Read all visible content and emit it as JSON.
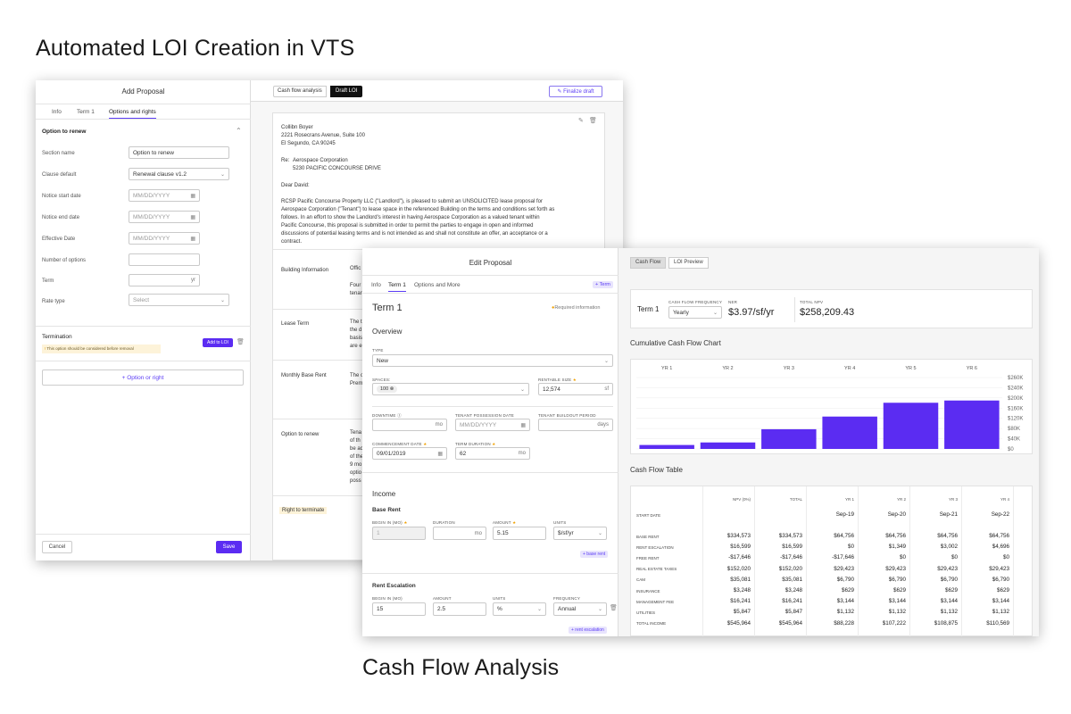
{
  "captions": {
    "top": "Automated LOI Creation in VTS",
    "bottom": "Cash Flow Analysis"
  },
  "colors": {
    "accent": "#5b2cf2",
    "bar": "#5b2cf2"
  },
  "add_proposal": {
    "title": "Add Proposal",
    "tabs": [
      "Info",
      "Term 1",
      "Options and rights"
    ],
    "section_title": "Option to renew",
    "fields": [
      {
        "label": "Section name",
        "value": "Option to renew"
      },
      {
        "label": "Clause default",
        "value": "Renewal clause v1.2"
      },
      {
        "label": "Notice start date",
        "placeholder": "MM/DD/YYYY"
      },
      {
        "label": "Notice end date",
        "placeholder": "MM/DD/YYYY"
      },
      {
        "label": "Effective Date",
        "placeholder": "MM/DD/YYYY"
      },
      {
        "label": "Number of options",
        "value": ""
      },
      {
        "label": "Term",
        "suffix": "yr"
      },
      {
        "label": "Rate type",
        "placeholder": "Select"
      }
    ],
    "termination_title": "Termination",
    "add_to_loi": "Add to LOI",
    "warning": "This option should be considered before removal",
    "option_button": "Option or right",
    "cancel": "Cancel",
    "save": "Save"
  },
  "loi": {
    "tab_cash": "Cash flow analysis",
    "tab_draft": "Draft LOI",
    "finalize": "Finalize draft",
    "address": [
      "Collibn Boyer",
      "2221 Rosecrans Avenue, Suite 100",
      "El Segundo, CA 90245"
    ],
    "re_label": "Re:",
    "re_lines": [
      "Aerospace Corporation",
      "5230 PACIFIC CONCOURSE DRIVE"
    ],
    "salutation": "Dear David:",
    "body": [
      "RCSP Pacific Concourse Property LLC (\"Landlord\"), is pleased to submit an UNSOLICITED lease proposal for",
      "Aerospace Corporation (\"Tenant\") to lease space in the referenced Building on the terms and conditions set forth as",
      "follows.  In an effort to show the Landlord's interest in having Aerospace Corporation as a valued tenant within",
      "Pacific Concourse, this proposal is submitted in order to permit the parties to engage in open and informed",
      "discussions of potential leasing terms and is not intended as and shall not constitute an offer, an acceptance or a",
      "contract."
    ],
    "sections": [
      {
        "label": "Building Information",
        "text": [
          "Offic",
          "Four",
          "tenar"
        ]
      },
      {
        "label": "Lease Term",
        "text": [
          "The t",
          "the d",
          "basis",
          "are e"
        ]
      },
      {
        "label": "Monthly Base Rent",
        "text": [
          "The c",
          "Prem"
        ]
      },
      {
        "label": "Option to renew",
        "text": [
          "Tena",
          "of th",
          "be ac",
          "of the",
          "9 mo",
          "optio",
          "poss"
        ]
      },
      {
        "label": "Right to terminate",
        "text": []
      }
    ]
  },
  "edit": {
    "title": "Edit Proposal",
    "tabs": [
      "Info",
      "Term 1",
      "Options and More"
    ],
    "add_term": "+ Term",
    "term_title": "Term 1",
    "required": "Required information",
    "overview": "Overview",
    "type_label": "TYPE",
    "type_value": "New",
    "spaces_label": "SPACES:",
    "spaces_chip": "100",
    "rentable_label": "RENTABLE SIZE",
    "rentable_value": "12,574",
    "rentable_unit": "sf",
    "downtime_label": "DOWNTIME",
    "downtime_unit": "mo",
    "possession_label": "TENANT POSSESSION DATE",
    "possession_ph": "MM/DD/YYYY",
    "buildout_label": "TENANT BUILDOUT PERIOD",
    "buildout_unit": "days",
    "commencement_label": "COMMENCEMENT DATE",
    "commencement_value": "09/01/2019",
    "duration_label": "TERM DURATION",
    "duration_value": "62",
    "duration_unit": "mo",
    "income": "Income",
    "base_rent": "Base Rent",
    "br_begin_label": "BEGIN IN (MO)",
    "br_begin": "1",
    "br_duration_label": "DURATION",
    "br_duration_unit": "mo",
    "br_amount_label": "AMOUNT",
    "br_amount": "5.15",
    "br_units_label": "UNITS",
    "br_units": "$/sf/yr",
    "add_base_rent": "+ base rent",
    "rent_esc": "Rent Escalation",
    "re_begin_label": "BEGIN IN (MO)",
    "re_begin": "15",
    "re_amount_label": "AMOUNT",
    "re_amount": "2.5",
    "re_units_label": "UNITS",
    "re_units": "%",
    "re_freq_label": "FREQUENCY",
    "re_freq": "Annual",
    "add_rent_esc": "+ rent escalation"
  },
  "cashflow": {
    "tab_cf": "Cash Flow",
    "tab_loi": "LOI Preview",
    "term": "Term 1",
    "freq_label": "CASH FLOW FREQUENCY",
    "freq_value": "Yearly",
    "ner_label": "NER",
    "ner_value": "$3.97/sf/yr",
    "npv_label": "TOTAL NPV",
    "npv_value": "$258,209.43",
    "chart_title": "Cumulative Cash Flow Chart",
    "table_title": "Cash Flow Table",
    "columns": [
      "NPV (0%)",
      "TOTAL",
      "YR 1",
      "YR 2",
      "YR 3",
      "YR 4"
    ],
    "start_label": "START DATE",
    "start_dates": [
      "",
      "",
      "Sep-19",
      "Sep-20",
      "Sep-21",
      "Sep-22"
    ],
    "rows": [
      {
        "label": "BASE RENT",
        "values": [
          "$334,573",
          "$334,573",
          "$64,756",
          "$64,756",
          "$64,756",
          "$64,756"
        ]
      },
      {
        "label": "RENT ESCALATION",
        "values": [
          "$16,599",
          "$16,599",
          "$0",
          "$1,349",
          "$3,002",
          "$4,696"
        ]
      },
      {
        "label": "FREE RENT",
        "values": [
          "-$17,646",
          "-$17,646",
          "-$17,646",
          "$0",
          "$0",
          "$0"
        ]
      },
      {
        "label": "REAL ESTATE TAXES",
        "values": [
          "$152,020",
          "$152,020",
          "$29,423",
          "$29,423",
          "$29,423",
          "$29,423"
        ]
      },
      {
        "label": "CAM",
        "values": [
          "$35,081",
          "$35,081",
          "$6,790",
          "$6,790",
          "$6,790",
          "$6,790"
        ]
      },
      {
        "label": "INSURANCE",
        "values": [
          "$3,248",
          "$3,248",
          "$629",
          "$629",
          "$629",
          "$629"
        ]
      },
      {
        "label": "MANAGEMENT FEE",
        "values": [
          "$16,241",
          "$16,241",
          "$3,144",
          "$3,144",
          "$3,144",
          "$3,144"
        ]
      },
      {
        "label": "UTILITIES",
        "values": [
          "$5,847",
          "$5,847",
          "$1,132",
          "$1,132",
          "$1,132",
          "$1,132"
        ]
      },
      {
        "label": "TOTAL INCOME",
        "values": [
          "$545,964",
          "$545,964",
          "$88,228",
          "$107,222",
          "$108,875",
          "$110,569"
        ]
      }
    ]
  },
  "chart_data": {
    "type": "bar",
    "title": "Cumulative Cash Flow Chart",
    "categories": [
      "YR 1",
      "YR 2",
      "YR 3",
      "YR 4",
      "YR 5",
      "YR 6"
    ],
    "values": [
      14000,
      23000,
      70000,
      115000,
      164000,
      172000
    ],
    "ylim": [
      0,
      260000
    ],
    "yticks": [
      "$260K",
      "$240K",
      "$200K",
      "$160K",
      "$120K",
      "$80K",
      "$40K",
      "$0"
    ]
  }
}
